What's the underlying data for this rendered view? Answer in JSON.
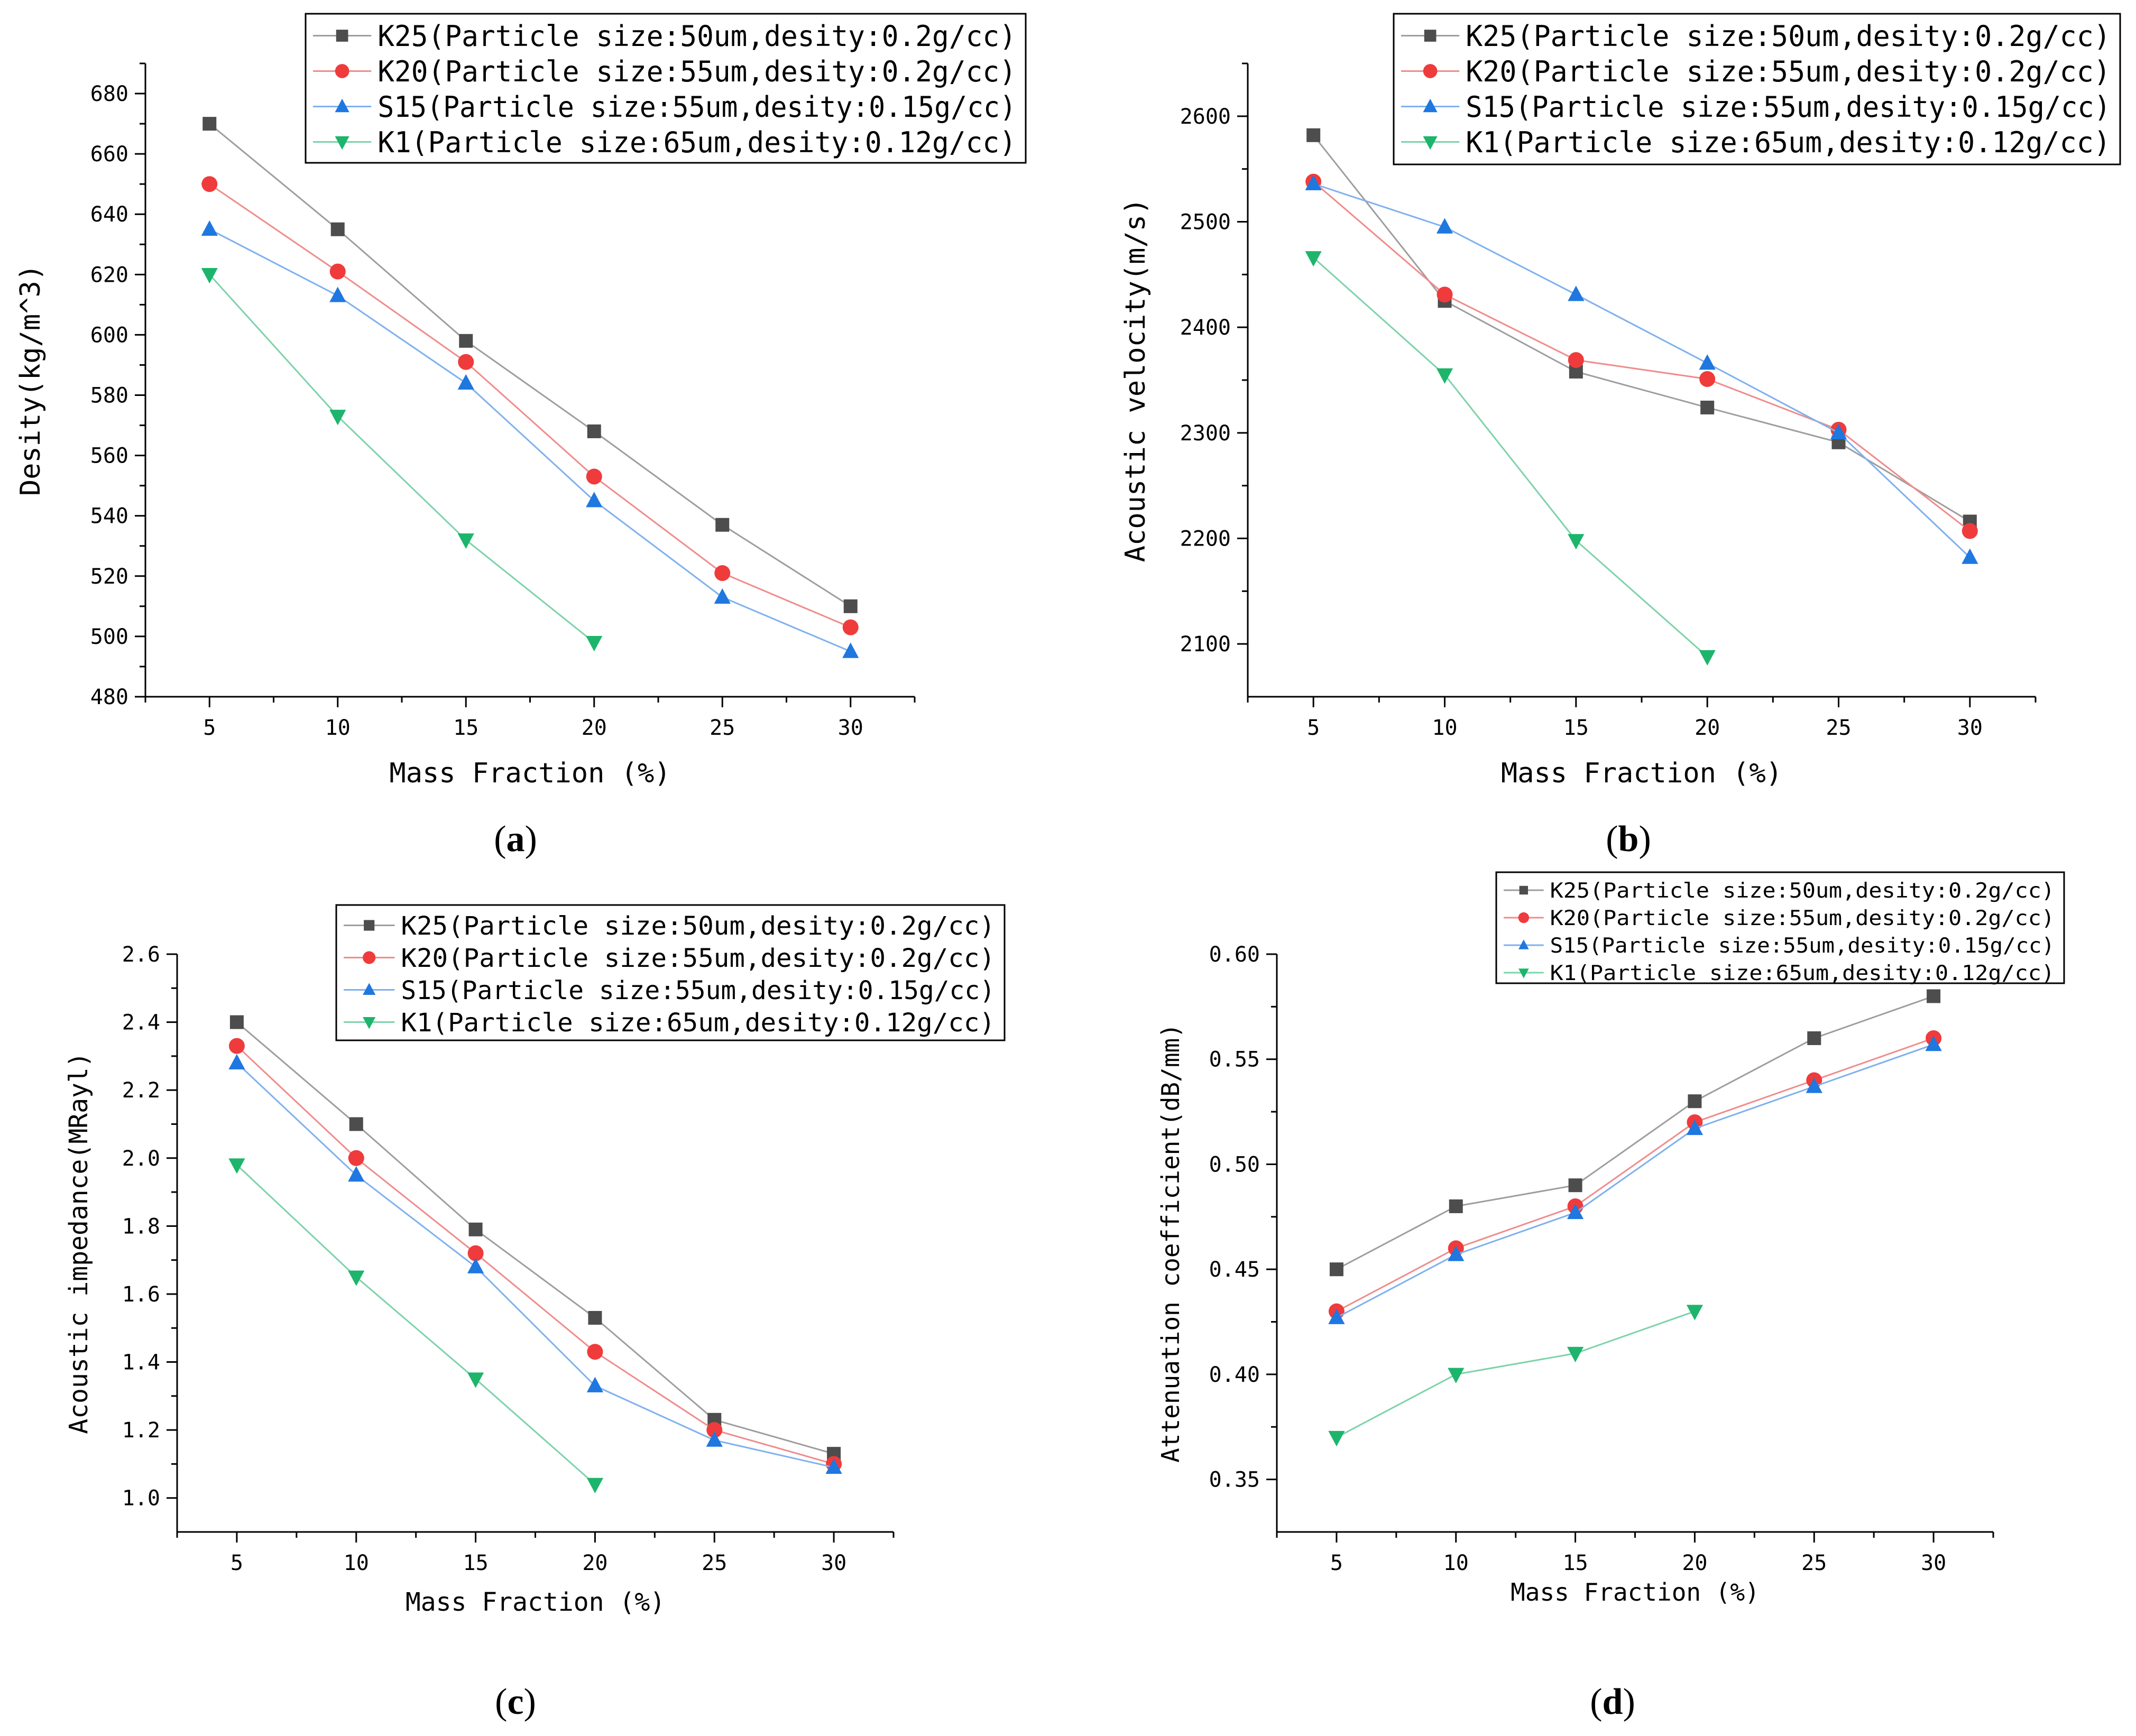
{
  "legend_entries": [
    "K25(Particle size:50um,desity:0.2g/cc)",
    "K20(Particle size:55um,desity:0.2g/cc)",
    "S15(Particle size:55um,desity:0.15g/cc)",
    "K1(Particle size:65um,desity:0.12g/cc)"
  ],
  "colors": {
    "K25": "#4d4d4d",
    "K20": "#ef3b3b",
    "S15": "#1f77e0",
    "K1": "#1db56b",
    "K25_line": "#9e9e9e",
    "K20_line": "#f08c8c",
    "S15_line": "#7fb1ee",
    "K1_line": "#7ed3aa"
  },
  "chart_data": [
    {
      "id": "a",
      "type": "line",
      "caption": "a",
      "xlabel": "Mass Fraction (%)",
      "ylabel": "Desity(kg/m^3)",
      "xlim": [
        2.5,
        32.5
      ],
      "ylim": [
        480,
        690
      ],
      "xticks": [
        5,
        10,
        15,
        20,
        25,
        30
      ],
      "yticks": [
        480,
        500,
        520,
        540,
        560,
        580,
        600,
        620,
        640,
        660,
        680
      ],
      "ytick_labels": [
        "480",
        "500",
        "520",
        "540",
        "560",
        "580",
        "600",
        "620",
        "640",
        "660",
        "680"
      ],
      "legend_position": "top-right",
      "series": [
        {
          "name": "K25(Particle size:50um,desity:0.2g/cc)",
          "marker": "square",
          "x": [
            5,
            10,
            15,
            20,
            25,
            30
          ],
          "values": [
            670,
            635,
            598,
            568,
            537,
            510
          ]
        },
        {
          "name": "K20(Particle size:55um,desity:0.2g/cc)",
          "marker": "circle",
          "x": [
            5,
            10,
            15,
            20,
            25,
            30
          ],
          "values": [
            650,
            621,
            591,
            553,
            521,
            503
          ]
        },
        {
          "name": "S15(Particle size:55um,desity:0.15g/cc)",
          "marker": "triangle-up",
          "x": [
            5,
            10,
            15,
            20,
            25,
            30
          ],
          "values": [
            635,
            613,
            584,
            545,
            513,
            495
          ]
        },
        {
          "name": "K1(Particle size:65um,desity:0.12g/cc)",
          "marker": "triangle-down",
          "x": [
            5,
            10,
            15,
            20
          ],
          "values": [
            620,
            573,
            532,
            498
          ]
        }
      ]
    },
    {
      "id": "b",
      "type": "line",
      "caption": "b",
      "xlabel": "Mass Fraction (%)",
      "ylabel": "Acoustic velocity(m/s)",
      "xlim": [
        2.5,
        32.5
      ],
      "ylim": [
        2050,
        2650
      ],
      "xticks": [
        5,
        10,
        15,
        20,
        25,
        30
      ],
      "yticks": [
        2100,
        2200,
        2300,
        2400,
        2500,
        2600
      ],
      "ytick_labels": [
        "2100",
        "2200",
        "2300",
        "2400",
        "2500",
        "2600"
      ],
      "legend_position": "top-right",
      "series": [
        {
          "name": "K25(Particle size:50um,desity:0.2g/cc)",
          "marker": "square",
          "x": [
            5,
            10,
            15,
            20,
            25,
            30
          ],
          "values": [
            2582,
            2425,
            2358,
            2324,
            2291,
            2216
          ]
        },
        {
          "name": "K20(Particle size:55um,desity:0.2g/cc)",
          "marker": "circle",
          "x": [
            5,
            10,
            15,
            20,
            25,
            30
          ],
          "values": [
            2538,
            2431,
            2369,
            2351,
            2303,
            2207
          ]
        },
        {
          "name": "S15(Particle size:55um,desity:0.15g/cc)",
          "marker": "triangle-up",
          "x": [
            5,
            10,
            15,
            20,
            25,
            30
          ],
          "values": [
            2536,
            2495,
            2431,
            2366,
            2300,
            2182
          ]
        },
        {
          "name": "K1(Particle size:65um,desity:0.12g/cc)",
          "marker": "triangle-down",
          "x": [
            5,
            10,
            15,
            20
          ],
          "values": [
            2466,
            2355,
            2198,
            2088
          ]
        }
      ]
    },
    {
      "id": "c",
      "type": "line",
      "caption": "c",
      "xlabel": "Mass Fraction (%)",
      "ylabel": "Acoustic impedance(MRayl)",
      "xlim": [
        2.5,
        32.5
      ],
      "ylim": [
        0.9,
        2.6
      ],
      "xticks": [
        5,
        10,
        15,
        20,
        25,
        30
      ],
      "yticks": [
        1.0,
        1.2,
        1.4,
        1.6,
        1.8,
        2.0,
        2.2,
        2.4,
        2.6
      ],
      "ytick_labels": [
        "1.0",
        "1.2",
        "1.4",
        "1.6",
        "1.8",
        "2.0",
        "2.2",
        "2.4",
        "2.6"
      ],
      "legend_position": "top-right",
      "series": [
        {
          "name": "K25(Particle size:50um,desity:0.2g/cc)",
          "marker": "square",
          "x": [
            5,
            10,
            15,
            20,
            25,
            30
          ],
          "values": [
            2.4,
            2.1,
            1.79,
            1.53,
            1.23,
            1.13
          ]
        },
        {
          "name": "K20(Particle size:55um,desity:0.2g/cc)",
          "marker": "circle",
          "x": [
            5,
            10,
            15,
            20,
            25,
            30
          ],
          "values": [
            2.33,
            2.0,
            1.72,
            1.43,
            1.2,
            1.1
          ]
        },
        {
          "name": "S15(Particle size:55um,desity:0.15g/cc)",
          "marker": "triangle-up",
          "x": [
            5,
            10,
            15,
            20,
            25,
            30
          ],
          "values": [
            2.28,
            1.95,
            1.68,
            1.33,
            1.17,
            1.09
          ]
        },
        {
          "name": "K1(Particle size:65um,desity:0.12g/cc)",
          "marker": "triangle-down",
          "x": [
            5,
            10,
            15,
            20
          ],
          "values": [
            1.98,
            1.65,
            1.35,
            1.04
          ]
        }
      ]
    },
    {
      "id": "d",
      "type": "line",
      "caption": "d",
      "xlabel": "Mass Fraction (%)",
      "ylabel": "Attenuation coefficient(dB/mm)",
      "xlim": [
        2.5,
        32.5
      ],
      "ylim": [
        0.325,
        0.6
      ],
      "xticks": [
        5,
        10,
        15,
        20,
        25,
        30
      ],
      "yticks": [
        0.35,
        0.4,
        0.45,
        0.5,
        0.55,
        0.6
      ],
      "ytick_labels": [
        "0.35",
        "0.40",
        "0.45",
        "0.50",
        "0.55",
        "0.60"
      ],
      "legend_position": "top-right",
      "series": [
        {
          "name": "K25(Particle size:50um,desity:0.2g/cc)",
          "marker": "square",
          "x": [
            5,
            10,
            15,
            20,
            25,
            30
          ],
          "values": [
            0.45,
            0.48,
            0.49,
            0.53,
            0.56,
            0.58
          ]
        },
        {
          "name": "K20(Particle size:55um,desity:0.2g/cc)",
          "marker": "circle",
          "x": [
            5,
            10,
            15,
            20,
            25,
            30
          ],
          "values": [
            0.43,
            0.46,
            0.48,
            0.52,
            0.54,
            0.56
          ]
        },
        {
          "name": "S15(Particle size:55um,desity:0.15g/cc)",
          "marker": "triangle-up",
          "x": [
            5,
            10,
            15,
            20,
            25,
            30
          ],
          "values": [
            0.427,
            0.457,
            0.477,
            0.517,
            0.537,
            0.557
          ]
        },
        {
          "name": "K1(Particle size:65um,desity:0.12g/cc)",
          "marker": "triangle-down",
          "x": [
            5,
            10,
            15,
            20
          ],
          "values": [
            0.37,
            0.4,
            0.41,
            0.43
          ]
        }
      ]
    }
  ]
}
